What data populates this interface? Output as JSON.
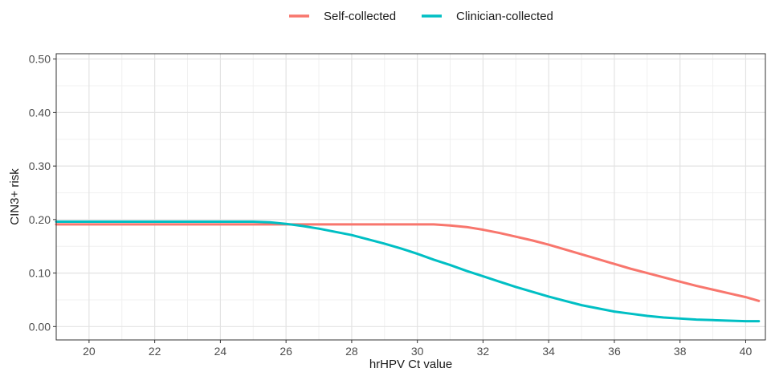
{
  "chart_data": {
    "type": "line",
    "title": "",
    "xlabel": "hrHPV Ct value",
    "ylabel": "CIN3+ risk",
    "xlim": [
      19,
      40.6
    ],
    "ylim": [
      -0.025,
      0.51
    ],
    "xticks": [
      20,
      22,
      24,
      26,
      28,
      30,
      32,
      34,
      36,
      38,
      40
    ],
    "yticks": [
      0.0,
      0.1,
      0.2,
      0.3,
      0.4,
      0.5
    ],
    "xtick_labels": [
      "20",
      "22",
      "24",
      "26",
      "28",
      "30",
      "32",
      "34",
      "36",
      "38",
      "40"
    ],
    "ytick_labels": [
      "0.00",
      "0.10",
      "0.20",
      "0.30",
      "0.40",
      "0.50"
    ],
    "grid": true,
    "legend_position": "top",
    "series": [
      {
        "name": "Self-collected",
        "color": "#F8766D",
        "x": [
          19,
          20,
          22,
          24,
          26,
          28,
          30,
          30.5,
          31,
          31.5,
          32,
          32.5,
          33,
          33.5,
          34,
          34.5,
          35,
          35.5,
          36,
          36.5,
          37,
          37.5,
          38,
          38.5,
          39,
          39.5,
          40,
          40.4
        ],
        "y": [
          0.191,
          0.191,
          0.191,
          0.191,
          0.191,
          0.191,
          0.191,
          0.191,
          0.189,
          0.186,
          0.181,
          0.175,
          0.168,
          0.161,
          0.153,
          0.144,
          0.135,
          0.126,
          0.117,
          0.108,
          0.1,
          0.092,
          0.084,
          0.076,
          0.069,
          0.062,
          0.055,
          0.048
        ]
      },
      {
        "name": "Clinician-collected",
        "color": "#00BFC4",
        "x": [
          19,
          20,
          22,
          24,
          25,
          25.5,
          26,
          26.5,
          27,
          27.5,
          28,
          28.5,
          29,
          29.5,
          30,
          30.5,
          31,
          31.5,
          32,
          32.5,
          33,
          33.5,
          34,
          34.5,
          35,
          35.5,
          36,
          36.5,
          37,
          37.5,
          38,
          38.5,
          39,
          39.5,
          40,
          40.4
        ],
        "y": [
          0.196,
          0.196,
          0.196,
          0.196,
          0.196,
          0.195,
          0.192,
          0.188,
          0.183,
          0.177,
          0.171,
          0.163,
          0.155,
          0.146,
          0.136,
          0.125,
          0.115,
          0.104,
          0.094,
          0.084,
          0.074,
          0.065,
          0.056,
          0.048,
          0.04,
          0.034,
          0.028,
          0.024,
          0.02,
          0.017,
          0.015,
          0.013,
          0.012,
          0.011,
          0.01,
          0.01
        ]
      }
    ]
  }
}
